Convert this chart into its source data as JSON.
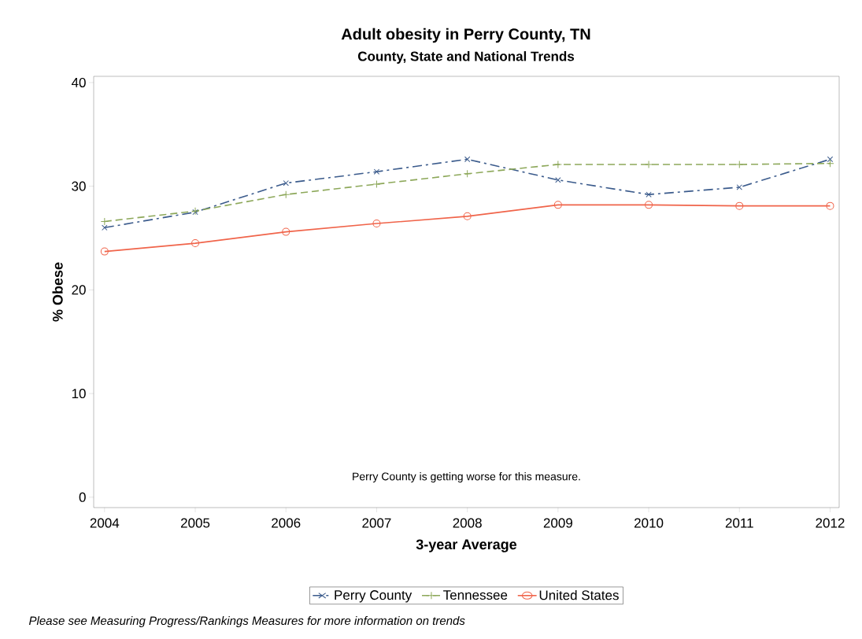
{
  "chart_data": {
    "type": "line",
    "title": "Adult obesity in Perry County, TN",
    "subtitle": "County, State and National Trends",
    "xlabel": "3-year Average",
    "ylabel": "% Obese",
    "x": [
      2004,
      2005,
      2006,
      2007,
      2008,
      2009,
      2010,
      2011,
      2012
    ],
    "series": [
      {
        "name": "Perry County",
        "color": "#3b5b8c",
        "marker": "cross",
        "line_style": "dashdot",
        "values": [
          26.0,
          27.5,
          30.3,
          31.4,
          32.6,
          30.6,
          29.2,
          29.9,
          32.6
        ]
      },
      {
        "name": "Tennessee",
        "color": "#8da85a",
        "marker": "plus",
        "line_style": "dashed",
        "values": [
          26.6,
          27.6,
          29.2,
          30.2,
          31.2,
          32.1,
          32.1,
          32.1,
          32.2
        ]
      },
      {
        "name": "United States",
        "color": "#f0644a",
        "marker": "circle",
        "line_style": "solid",
        "values": [
          23.7,
          24.5,
          25.6,
          26.4,
          27.1,
          28.2,
          28.2,
          28.1,
          28.1
        ]
      }
    ],
    "xlim": [
      2003.88,
      2012.1
    ],
    "xticks": [
      2004,
      2005,
      2006,
      2007,
      2008,
      2009,
      2010,
      2011,
      2012
    ],
    "ylim": [
      -1,
      40.6
    ],
    "yticks": [
      0,
      10,
      20,
      30,
      40
    ],
    "grid": false,
    "legend": "bottom",
    "annotations": [
      "Perry County is getting worse for this measure.",
      "Please see Measuring Progress/Rankings Measures for more information on trends"
    ]
  }
}
